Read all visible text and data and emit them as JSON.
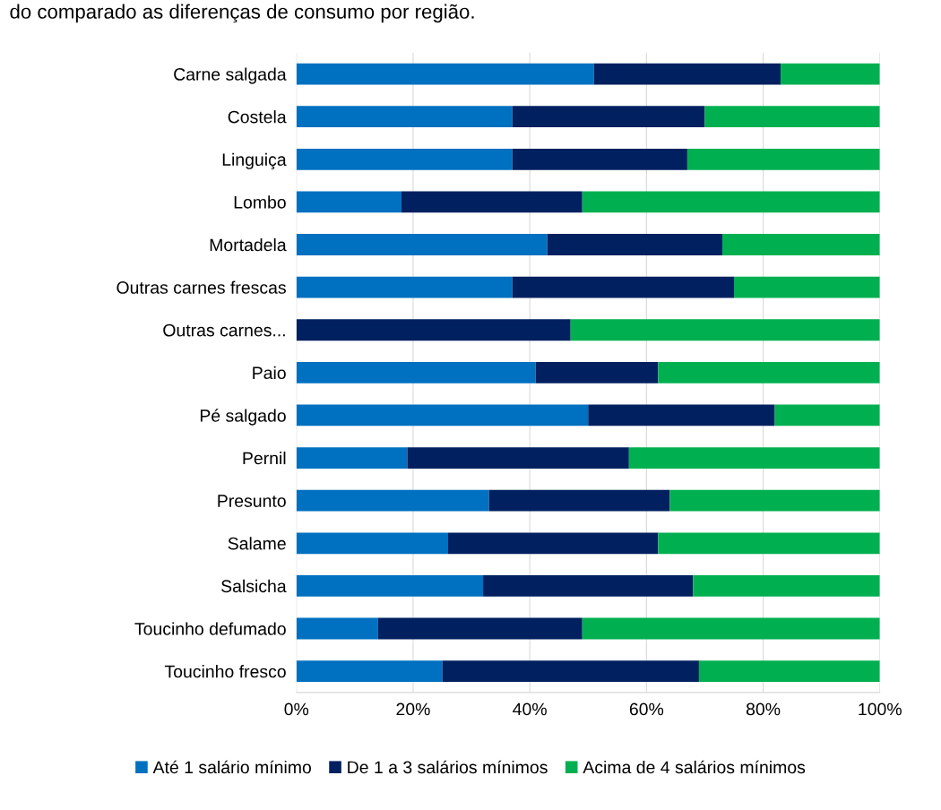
{
  "chart_data": {
    "type": "bar",
    "orientation": "horizontal",
    "stacked": true,
    "annotations": [
      "do comparado as diferenças de consumo por região."
    ],
    "categories": [
      "Carne salgada",
      "Costela",
      "Linguiça",
      "Lombo",
      "Mortadela",
      "Outras carnes frescas",
      "Outras carnes...",
      "Paio",
      "Pé salgado",
      "Pernil",
      "Presunto",
      "Salame",
      "Salsicha",
      "Toucinho defumado",
      "Toucinho fresco"
    ],
    "series": [
      {
        "name": "Até 1 salário mínimo",
        "color": "#0070c0",
        "values": [
          51,
          37,
          37,
          18,
          43,
          37,
          0,
          41,
          50,
          19,
          33,
          26,
          32,
          14,
          25
        ]
      },
      {
        "name": "De 1 a 3 salários mínimos",
        "color": "#002060",
        "values": [
          32,
          33,
          30,
          31,
          30,
          38,
          47,
          21,
          32,
          38,
          31,
          36,
          36,
          35,
          44
        ]
      },
      {
        "name": "Acima de 4 salários mínimos",
        "color": "#00b050",
        "values": [
          17,
          30,
          33,
          51,
          27,
          25,
          53,
          38,
          18,
          43,
          36,
          38,
          32,
          51,
          31
        ]
      }
    ],
    "xlim": [
      0,
      100
    ],
    "xticks": [
      {
        "value": 0,
        "label": "0%"
      },
      {
        "value": 20,
        "label": "20%"
      },
      {
        "value": 40,
        "label": "40%"
      },
      {
        "value": 60,
        "label": "60%"
      },
      {
        "value": 80,
        "label": "80%"
      },
      {
        "value": 100,
        "label": "100%"
      }
    ],
    "grid": "x",
    "legend": "bottom"
  }
}
